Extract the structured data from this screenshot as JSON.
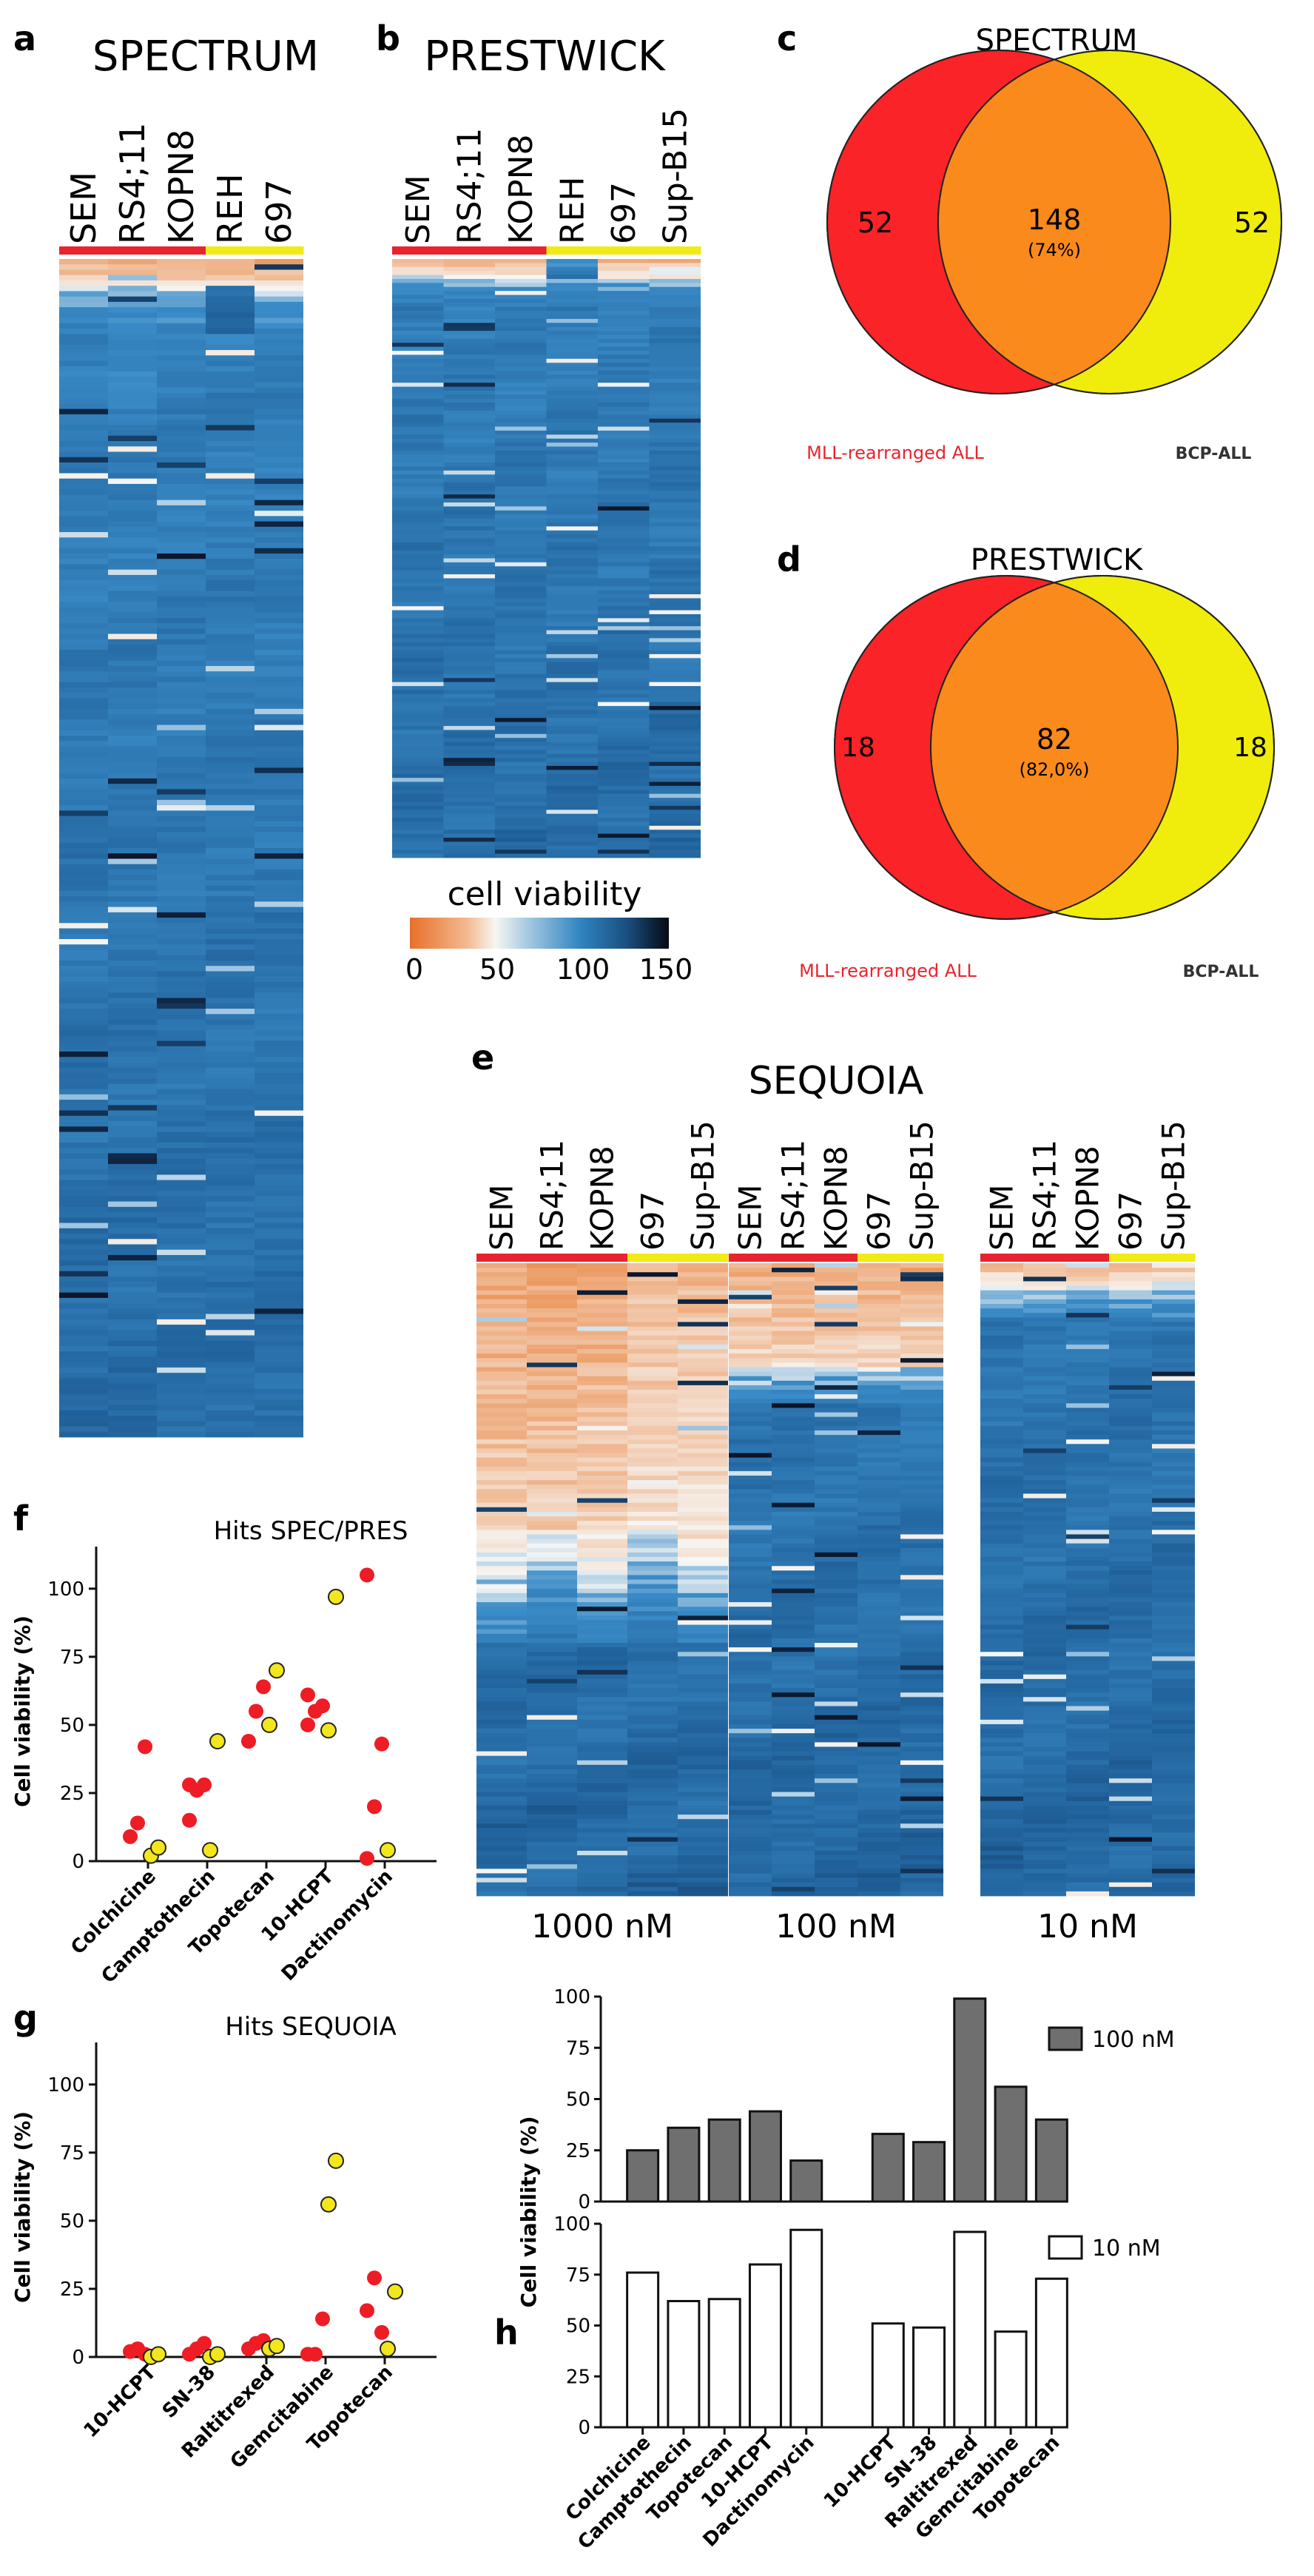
{
  "colors": {
    "mll": "#e8232d",
    "bcp": "#f1ea15",
    "overlap": "#f58d1e",
    "venn_red": "#fa2328",
    "venn_yellow": "#f0ec0c",
    "venn_orange": "#fa8a1c",
    "bar_dark": "#6f6f6f",
    "bar_light": "#ffffff",
    "dot_red": "#ee1c25",
    "dot_yellow": "#f2e61d",
    "hm_orange": "#e9782c",
    "hm_white": "#f6f6f4",
    "hm_blue": "#3a8cc8",
    "hm_dark": "#0b1326"
  },
  "panels": {
    "a": {
      "letter": "a",
      "title": "SPECTRUM",
      "cell_lines": [
        "SEM",
        "RS4;11",
        "KOPN8",
        "REH",
        "697"
      ],
      "groups": [
        "mll",
        "mll",
        "mll",
        "bcp",
        "bcp"
      ]
    },
    "b": {
      "letter": "b",
      "title": "PRESTWICK",
      "cell_lines": [
        "SEM",
        "RS4;11",
        "KOPN8",
        "REH",
        "697",
        "Sup-B15"
      ],
      "groups": [
        "mll",
        "mll",
        "mll",
        "bcp",
        "bcp",
        "bcp"
      ]
    },
    "legend": {
      "title": "cell viability",
      "ticks": [
        "0",
        "50",
        "100",
        "150"
      ]
    },
    "c": {
      "letter": "c",
      "title": "SPECTRUM",
      "left": "52",
      "center": "148",
      "center_pct": "(74%)",
      "right": "52",
      "left_label": "MLL-rearranged ALL",
      "right_label": "BCP-ALL"
    },
    "d": {
      "letter": "d",
      "title": "PRESTWICK",
      "left": "18",
      "center": "82",
      "center_pct": "(82,0%)",
      "right": "18",
      "left_label": "MLL-rearranged ALL",
      "right_label": "BCP-ALL"
    },
    "e": {
      "letter": "e",
      "title": "SEQUOIA",
      "cell_lines": [
        "SEM",
        "RS4;11",
        "KOPN8",
        "697",
        "Sup-B15"
      ],
      "groups": [
        "mll",
        "mll",
        "mll",
        "bcp",
        "bcp"
      ],
      "concentrations": [
        "1000 nM",
        "100 nM",
        "10 nM"
      ]
    },
    "f": {
      "letter": "f"
    },
    "g": {
      "letter": "g"
    },
    "h": {
      "letter": "h"
    }
  },
  "chart_data": [
    {
      "id": "f",
      "type": "scatter",
      "title": "Hits SPEC/PRES",
      "xlabel": "",
      "ylabel": "Cell viability (%)",
      "ylim": [
        0,
        110
      ],
      "yticks": [
        0,
        25,
        50,
        75,
        100
      ],
      "categories": [
        "Colchicine",
        "Camptothecin",
        "Topotecan",
        "10-HCPT",
        "Dactinomycin"
      ],
      "series": [
        {
          "name": "MLL-rearranged ALL",
          "color": "red",
          "points": [
            [
              0,
              9
            ],
            [
              0,
              14
            ],
            [
              0,
              42
            ],
            [
              1,
              15
            ],
            [
              1,
              26
            ],
            [
              1,
              28
            ],
            [
              1,
              28
            ],
            [
              2,
              44
            ],
            [
              2,
              55
            ],
            [
              2,
              64
            ],
            [
              3,
              50
            ],
            [
              3,
              55
            ],
            [
              3,
              57
            ],
            [
              3,
              61
            ],
            [
              4,
              1
            ],
            [
              4,
              20
            ],
            [
              4,
              43
            ],
            [
              4,
              105
            ]
          ]
        },
        {
          "name": "BCP-ALL",
          "color": "yellow",
          "points": [
            [
              0,
              2
            ],
            [
              0,
              5
            ],
            [
              1,
              4
            ],
            [
              1,
              44
            ],
            [
              2,
              50
            ],
            [
              2,
              70
            ],
            [
              3,
              48
            ],
            [
              3,
              97
            ],
            [
              4,
              4
            ]
          ]
        }
      ]
    },
    {
      "id": "g",
      "type": "scatter",
      "title": "Hits SEQUOIA",
      "xlabel": "",
      "ylabel": "Cell viability (%)",
      "ylim": [
        0,
        110
      ],
      "yticks": [
        0,
        25,
        50,
        75,
        100
      ],
      "categories": [
        "10-HCPT",
        "SN-38",
        "Raltitrexed",
        "Gemcitabine",
        "Topotecan"
      ],
      "series": [
        {
          "name": "MLL-rearranged ALL",
          "color": "red",
          "points": [
            [
              0,
              2
            ],
            [
              0,
              3
            ],
            [
              0,
              1
            ],
            [
              1,
              1
            ],
            [
              1,
              3
            ],
            [
              1,
              5
            ],
            [
              2,
              3
            ],
            [
              2,
              5
            ],
            [
              2,
              6
            ],
            [
              3,
              1
            ],
            [
              3,
              1
            ],
            [
              3,
              14
            ],
            [
              4,
              17
            ],
            [
              4,
              29
            ],
            [
              4,
              9
            ]
          ]
        },
        {
          "name": "BCP-ALL",
          "color": "yellow",
          "points": [
            [
              0,
              0
            ],
            [
              0,
              1
            ],
            [
              1,
              0
            ],
            [
              1,
              1
            ],
            [
              2,
              3
            ],
            [
              2,
              4
            ],
            [
              3,
              56
            ],
            [
              3,
              72
            ],
            [
              4,
              3
            ],
            [
              4,
              24
            ]
          ]
        }
      ]
    },
    {
      "id": "h",
      "type": "bar",
      "title": "",
      "xlabel": "",
      "ylabel": "Cell viability (%)",
      "ylim": [
        0,
        100
      ],
      "yticks": [
        0,
        25,
        50,
        75,
        100
      ],
      "categories": [
        "Colchicine",
        "Camptothecin",
        "Topotecan",
        "10-HCPT",
        "Dactinomycin",
        "10-HCPT",
        "SN-38",
        "Raltitrexed",
        "Gemcitabine",
        "Topotecan"
      ],
      "series": [
        {
          "name": "100 nM",
          "values": [
            25,
            36,
            40,
            44,
            20,
            33,
            29,
            99,
            56,
            40
          ]
        },
        {
          "name": "10 nM",
          "values": [
            76,
            62,
            63,
            80,
            97,
            51,
            49,
            96,
            47,
            73
          ]
        }
      ]
    }
  ]
}
